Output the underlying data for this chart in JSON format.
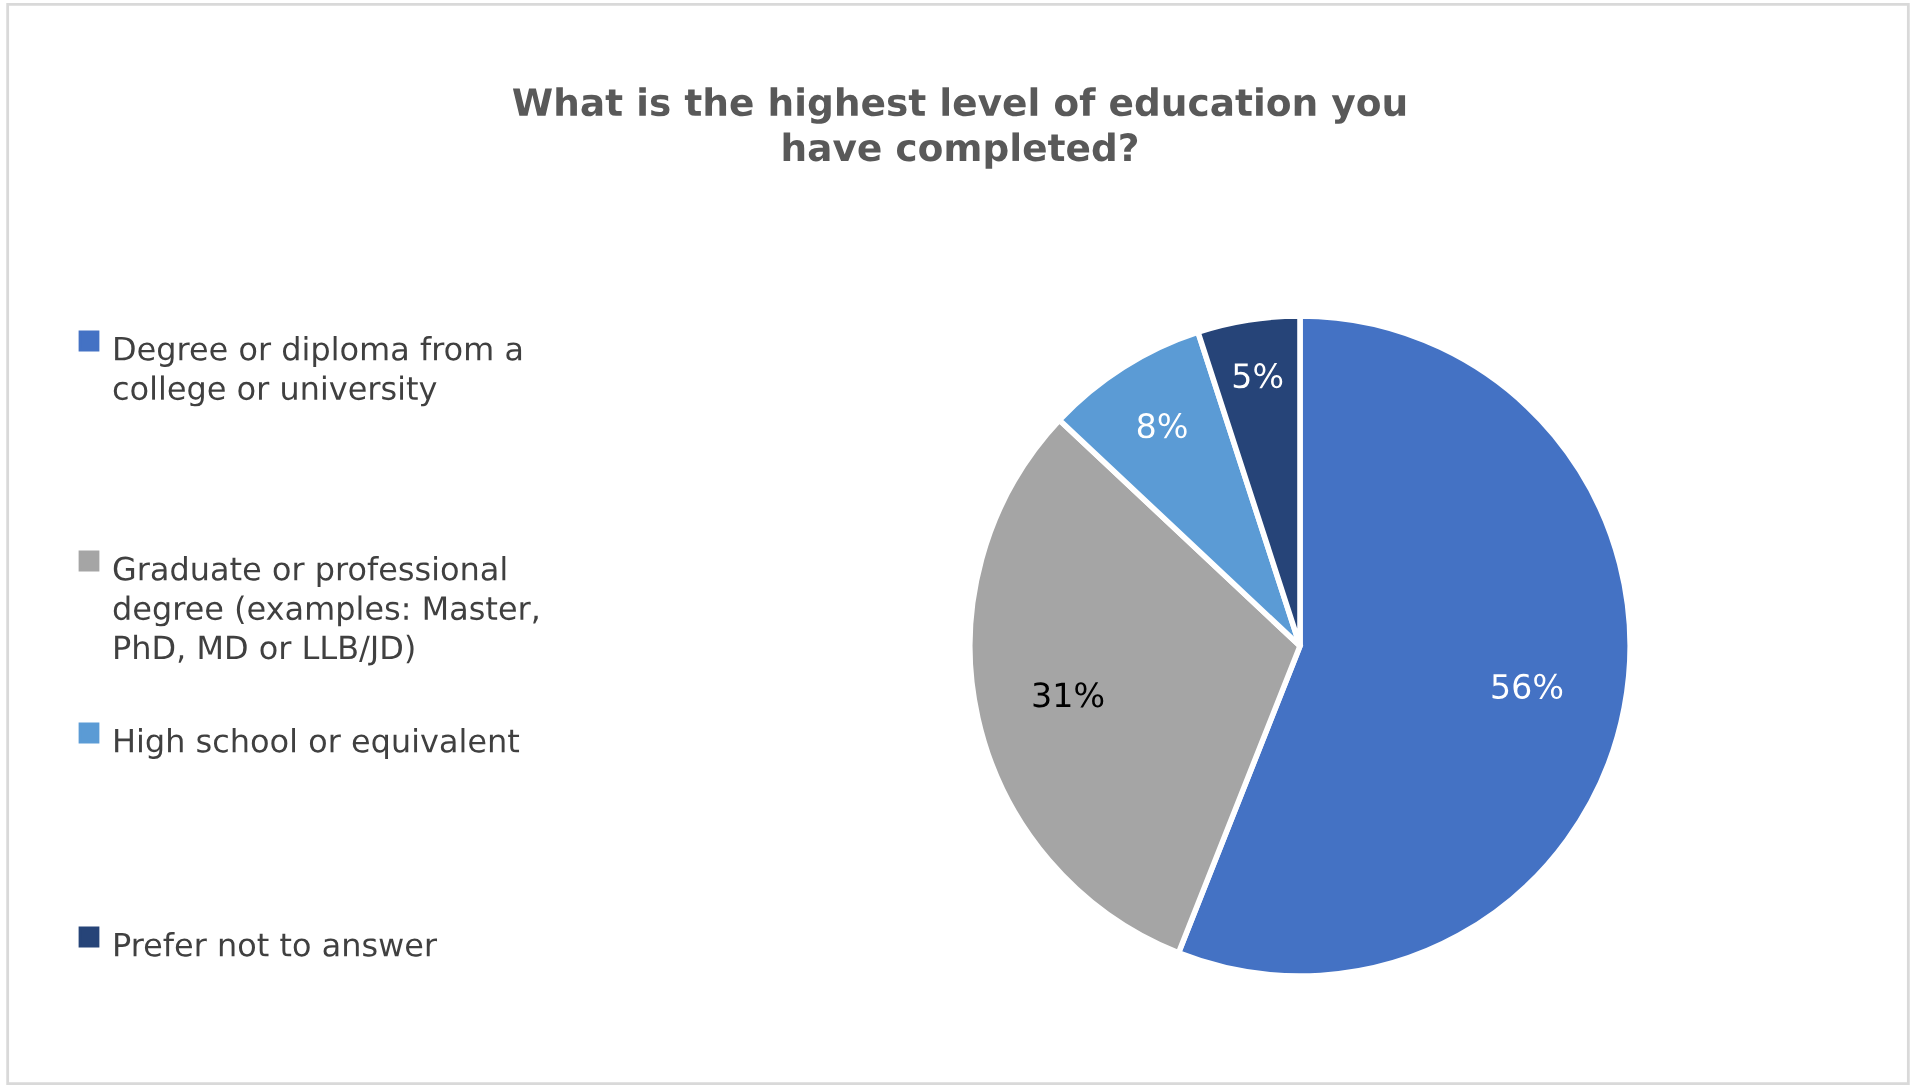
{
  "chart_data": {
    "type": "pie",
    "title": "What is the highest level of education you have completed?",
    "categories": [
      "Degree or diploma from a college or university",
      "Graduate or professional degree (examples: Master, PhD, MD or LLB/JD)",
      "High school or equivalent",
      "Prefer not to answer"
    ],
    "values": [
      56,
      31,
      8,
      5
    ],
    "colors": [
      "#4472c4",
      "#a5a5a5",
      "#5b9bd5",
      "#264478"
    ],
    "value_labels": [
      "56%",
      "31%",
      "8%",
      "5%"
    ],
    "legend": "left"
  }
}
